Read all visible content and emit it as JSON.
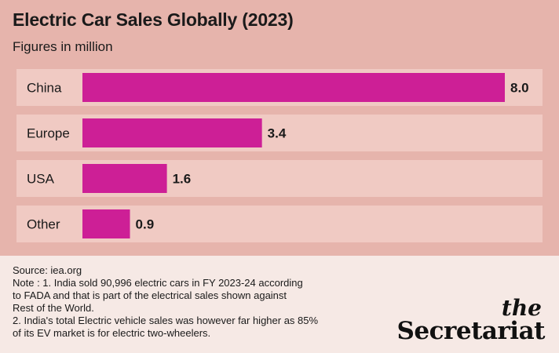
{
  "header": {
    "title": "Electric Car Sales Globally (2023)",
    "subtitle": "Figures in million"
  },
  "chart_data": {
    "type": "bar",
    "orientation": "horizontal",
    "title": "Electric Car Sales Globally (2023)",
    "subtitle": "Figures in million",
    "categories": [
      "China",
      "Europe",
      "USA",
      "Other"
    ],
    "values": [
      8.0,
      3.4,
      1.6,
      0.9
    ],
    "value_labels": [
      "8.0",
      "3.4",
      "1.6",
      "0.9"
    ],
    "xlim": [
      0,
      8.0
    ],
    "grid": false,
    "legend": "none",
    "bar_color": "#cd1f96",
    "row_color": "#f0cac3"
  },
  "footer": {
    "source": "Source: iea.org",
    "note_lines": [
      "Note : 1. India sold 90,996 electric cars in FY 2023-24 according",
      "to FADA and that is part of the electrical sales shown against",
      "Rest of the World.",
      "2. India's total Electric vehicle sales was however far higher as 85%",
      "of its EV market is for electric two-wheelers."
    ]
  },
  "brand": {
    "the": "the",
    "name": "Secretariat"
  },
  "colors": {
    "background": "#e6b4ac",
    "footer_bg": "#f6e9e5",
    "text": "#1a1a1a"
  }
}
